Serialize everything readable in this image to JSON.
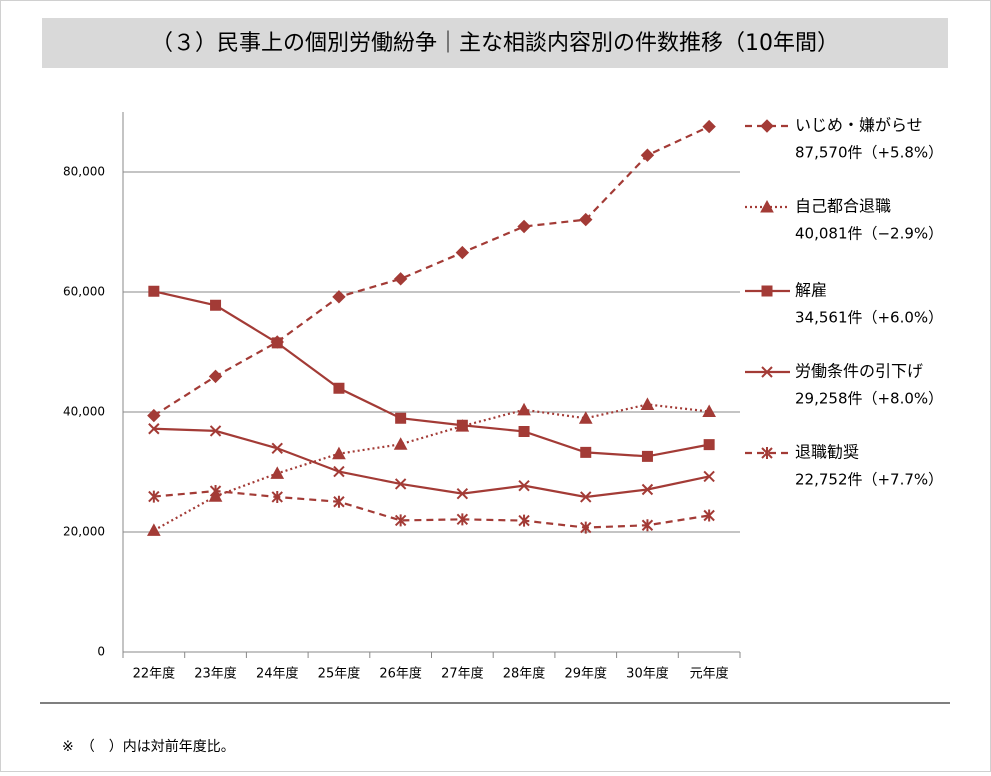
{
  "chart_data": {
    "type": "line",
    "title": "（３）民事上の個別労働紛争｜主な相談内容別の件数推移（10年間）",
    "categories": [
      "22年度",
      "23年度",
      "24年度",
      "25年度",
      "26年度",
      "27年度",
      "28年度",
      "29年度",
      "30年度",
      "元年度"
    ],
    "ylim": [
      0,
      90000
    ],
    "yticks": [
      0,
      {
        "value": 20000,
        "label": "20,000"
      },
      {
        "value": 40000,
        "label": "40,000"
      },
      {
        "value": 60000,
        "label": "60,000"
      },
      {
        "value": 80000,
        "label": "80,000"
      }
    ],
    "grid": true,
    "legend": "right",
    "series": [
      {
        "name": "いじめ・嫌がらせ",
        "summary": "87,570件（+5.8%）",
        "color": "#a33b36",
        "line_style": "dashed",
        "marker": "diamond",
        "values": [
          39405,
          45939,
          51670,
          59197,
          62191,
          66566,
          70917,
          72067,
          82797,
          87570
        ]
      },
      {
        "name": "自己都合退職",
        "summary": "40,081件（−2.9%）",
        "color": "#a33b36",
        "line_style": "dotted",
        "marker": "triangle",
        "values": [
          20265,
          25966,
          29763,
          33049,
          34626,
          37648,
          40364,
          38954,
          41258,
          40081
        ]
      },
      {
        "name": "解雇",
        "summary": "34,561件（+6.0%）",
        "color": "#a33b36",
        "line_style": "solid",
        "marker": "square",
        "values": [
          60118,
          57785,
          51515,
          43956,
          38966,
          37787,
          36760,
          33269,
          32614,
          34561
        ]
      },
      {
        "name": "労働条件の引下げ",
        "summary": "29,258件（+8.0%）",
        "color": "#a33b36",
        "line_style": "solid",
        "marker": "x",
        "values": [
          37210,
          36849,
          33955,
          30067,
          28015,
          26392,
          27723,
          25841,
          27082,
          29258
        ]
      },
      {
        "name": "退職勧奨",
        "summary": "22,752件（+7.7%）",
        "color": "#a33b36",
        "line_style": "dashed",
        "marker": "asterisk",
        "values": [
          25902,
          26828,
          25838,
          25041,
          21928,
          22110,
          21901,
          20736,
          21125,
          22752
        ]
      }
    ],
    "footnote": "※　（　）内は対前年度比。"
  }
}
